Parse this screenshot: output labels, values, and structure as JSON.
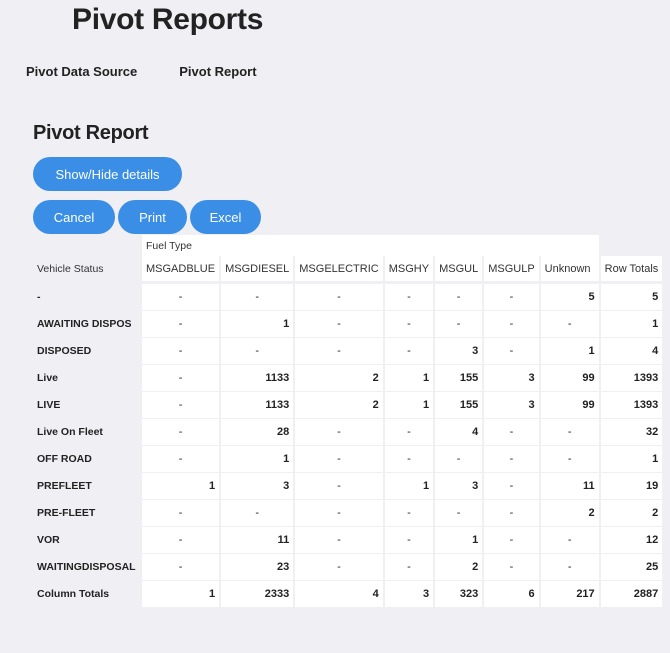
{
  "page": {
    "title": "Pivot Reports"
  },
  "tabs": [
    {
      "label": "Pivot Data Source"
    },
    {
      "label": "Pivot Report"
    }
  ],
  "section": {
    "title": "Pivot Report"
  },
  "buttons": {
    "show_hide": "Show/Hide details",
    "cancel": "Cancel",
    "print": "Print",
    "excel": "Excel"
  },
  "pivot": {
    "column_group_label": "Fuel Type",
    "row_header": "Vehicle Status",
    "columns": [
      "MSGADBLUE",
      "MSGDIESEL",
      "MSGELECTRIC",
      "MSGHY",
      "MSGUL",
      "MSGULP",
      "Unknown",
      "Row Totals"
    ],
    "rows": [
      {
        "label": "-",
        "values": [
          "-",
          "-",
          "-",
          "-",
          "-",
          "-",
          "5",
          "5"
        ]
      },
      {
        "label": "AWAITING DISPOS",
        "values": [
          "-",
          "1",
          "-",
          "-",
          "-",
          "-",
          "-",
          "1"
        ]
      },
      {
        "label": "DISPOSED",
        "values": [
          "-",
          "-",
          "-",
          "-",
          "3",
          "-",
          "1",
          "4"
        ]
      },
      {
        "label": "Live",
        "values": [
          "-",
          "1133",
          "2",
          "1",
          "155",
          "3",
          "99",
          "1393"
        ]
      },
      {
        "label": "LIVE",
        "values": [
          "-",
          "1133",
          "2",
          "1",
          "155",
          "3",
          "99",
          "1393"
        ]
      },
      {
        "label": "Live On Fleet",
        "values": [
          "-",
          "28",
          "-",
          "-",
          "4",
          "-",
          "-",
          "32"
        ]
      },
      {
        "label": "OFF ROAD",
        "values": [
          "-",
          "1",
          "-",
          "-",
          "-",
          "-",
          "-",
          "1"
        ]
      },
      {
        "label": "PREFLEET",
        "values": [
          "1",
          "3",
          "-",
          "1",
          "3",
          "-",
          "11",
          "19"
        ]
      },
      {
        "label": "PRE-FLEET",
        "values": [
          "-",
          "-",
          "-",
          "-",
          "-",
          "-",
          "2",
          "2"
        ]
      },
      {
        "label": "VOR",
        "values": [
          "-",
          "11",
          "-",
          "-",
          "1",
          "-",
          "-",
          "12"
        ]
      },
      {
        "label": "WAITINGDISPOSAL",
        "values": [
          "-",
          "23",
          "-",
          "-",
          "2",
          "-",
          "-",
          "25"
        ]
      }
    ],
    "totals": {
      "label": "Column Totals",
      "values": [
        "1",
        "2333",
        "4",
        "3",
        "323",
        "6",
        "217",
        "2887"
      ]
    }
  }
}
